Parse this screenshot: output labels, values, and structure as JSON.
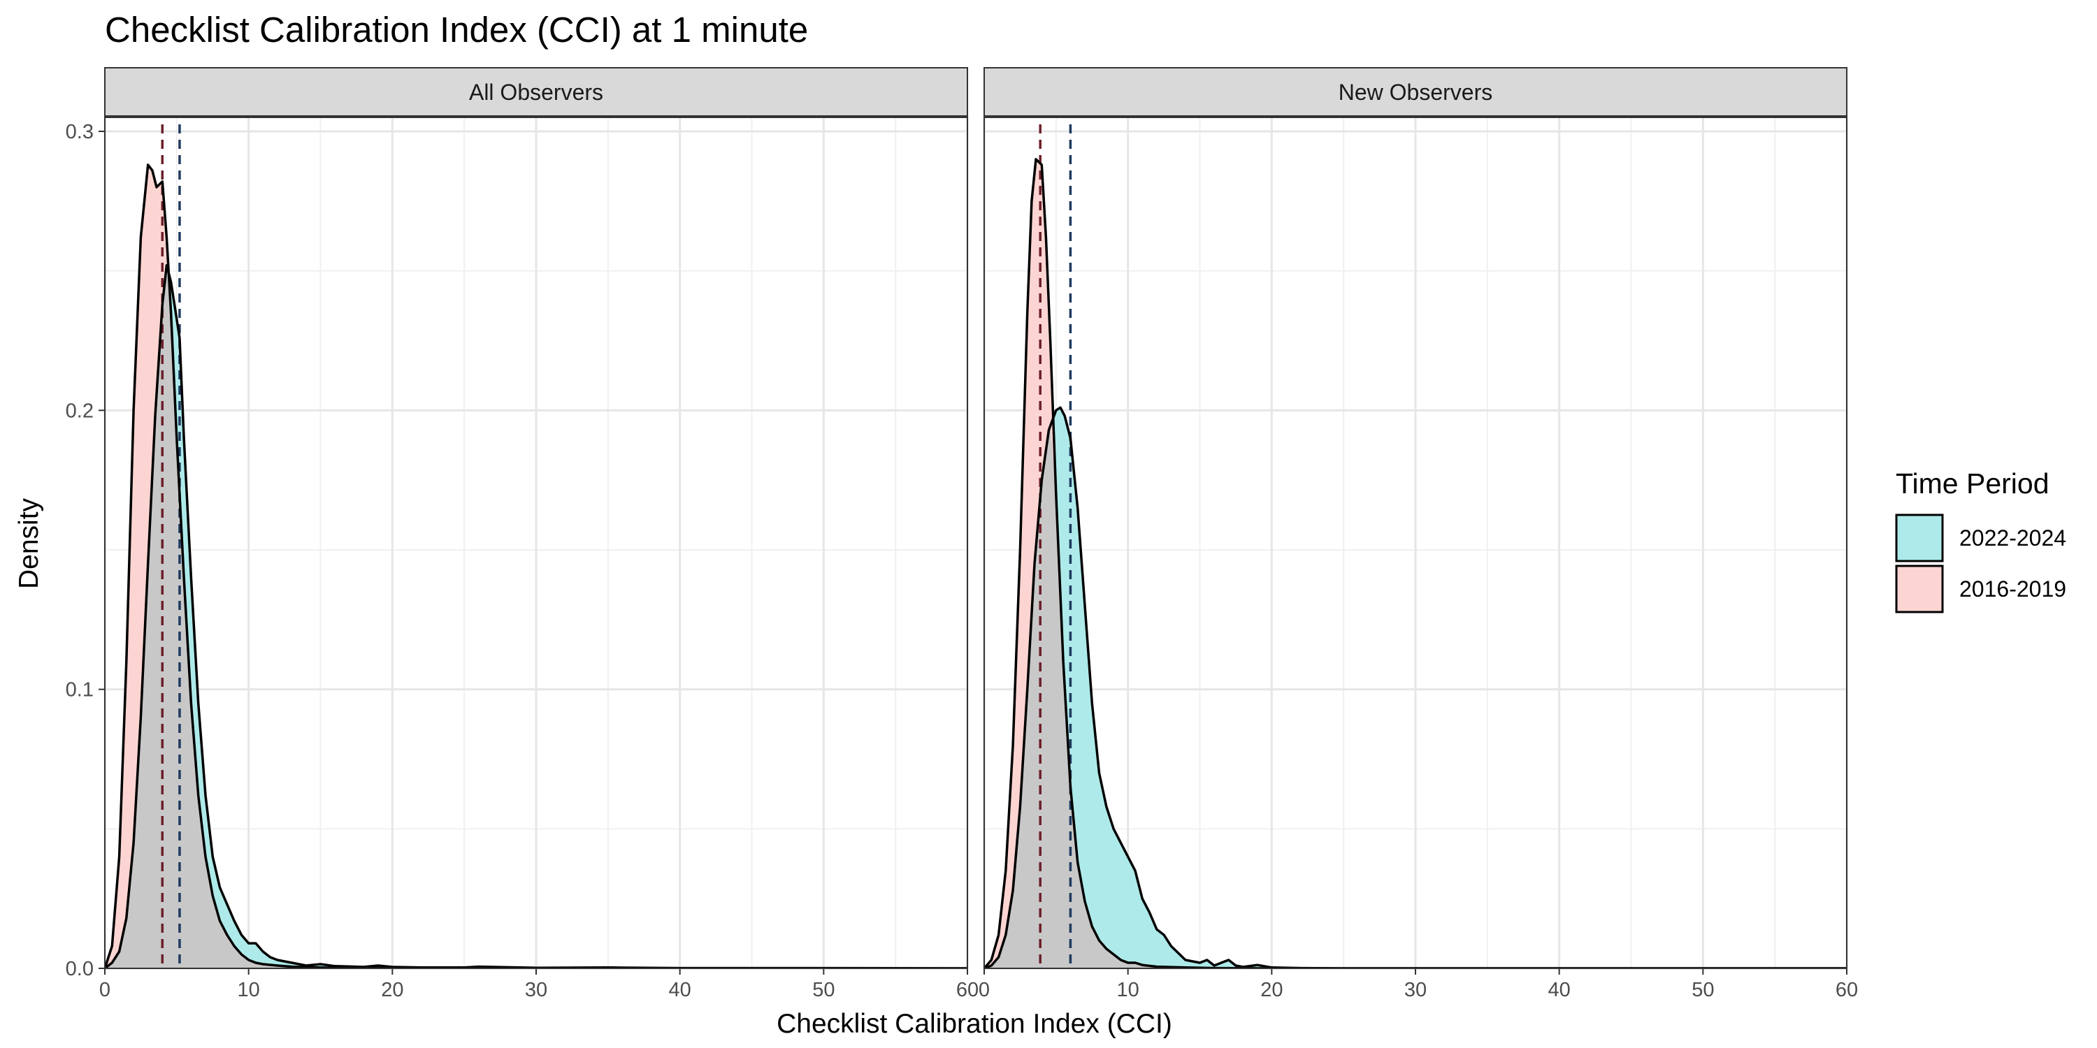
{
  "chart_data": {
    "type": "area",
    "title": "Checklist Calibration Index (CCI) at 1 minute",
    "xlabel": "Checklist Calibration Index (CCI)",
    "ylabel": "Density",
    "xlim": [
      0,
      60
    ],
    "ylim": [
      0,
      0.3
    ],
    "x_ticks": [
      "0",
      "10",
      "20",
      "30",
      "40",
      "50",
      "60"
    ],
    "y_ticks": [
      "0.0",
      "0.1",
      "0.2",
      "0.3"
    ],
    "grid": true,
    "legend": {
      "title": "Time Period",
      "placement": "right",
      "entries": [
        {
          "label": "2022-2024",
          "color": "#aeeaea"
        },
        {
          "label": "2016-2019",
          "color": "#fcd5d2"
        }
      ]
    },
    "overlap_color": "#c8c8c8",
    "panels": [
      {
        "strip": "All Observers",
        "series": [
          {
            "name": "2022-2024",
            "color": "#aeeaea",
            "mean_line": {
              "x": 5.2,
              "color": "#1f3a5f"
            },
            "x": [
              0,
              0.5,
              1,
              1.5,
              2,
              2.5,
              3,
              3.5,
              4,
              4.3,
              4.6,
              4.9,
              5.2,
              5.5,
              6,
              6.5,
              7,
              7.5,
              8,
              8.5,
              9,
              9.5,
              10,
              10.5,
              11,
              11.5,
              12,
              13,
              14,
              15,
              16,
              18,
              19,
              20,
              22,
              25,
              26,
              30,
              35,
              40,
              50,
              60
            ],
            "y": [
              0.0,
              0.002,
              0.006,
              0.018,
              0.045,
              0.09,
              0.145,
              0.198,
              0.238,
              0.252,
              0.246,
              0.236,
              0.226,
              0.19,
              0.14,
              0.095,
              0.062,
              0.04,
              0.029,
              0.023,
              0.017,
              0.012,
              0.009,
              0.009,
              0.006,
              0.004,
              0.003,
              0.002,
              0.001,
              0.0015,
              0.0008,
              0.0005,
              0.001,
              0.0005,
              0.0003,
              0.0003,
              0.0006,
              0.0002,
              0.0003,
              0.0001,
              0.0001,
              0.0
            ]
          },
          {
            "name": "2016-2019",
            "color": "#fcd5d2",
            "mean_line": {
              "x": 4.0,
              "color": "#6b1f2a"
            },
            "x": [
              0,
              0.5,
              1,
              1.5,
              2,
              2.5,
              3,
              3.3,
              3.6,
              4,
              4.3,
              4.6,
              5,
              5.5,
              6,
              6.5,
              7,
              7.5,
              8,
              8.5,
              9,
              9.5,
              10,
              10.5,
              11,
              12,
              13,
              14,
              16,
              20,
              30,
              60
            ],
            "y": [
              0.0,
              0.008,
              0.04,
              0.11,
              0.2,
              0.262,
              0.288,
              0.286,
              0.28,
              0.282,
              0.262,
              0.235,
              0.19,
              0.14,
              0.095,
              0.062,
              0.04,
              0.026,
              0.017,
              0.012,
              0.008,
              0.005,
              0.003,
              0.002,
              0.0015,
              0.001,
              0.0006,
              0.0004,
              0.0002,
              0.0001,
              0.0,
              0.0
            ]
          }
        ]
      },
      {
        "strip": "New Observers",
        "series": [
          {
            "name": "2022-2024",
            "color": "#aeeaea",
            "mean_line": {
              "x": 6.0,
              "color": "#1f3a5f"
            },
            "x": [
              0,
              0.5,
              1,
              1.5,
              2,
              2.5,
              3,
              3.5,
              4,
              4.5,
              5,
              5.3,
              5.6,
              6,
              6.5,
              7,
              7.5,
              8,
              8.5,
              9,
              9.5,
              10,
              10.5,
              11,
              11.5,
              12,
              12.5,
              13,
              14,
              15,
              15.5,
              16,
              16.5,
              17,
              17.5,
              18,
              19,
              20,
              22,
              25,
              60
            ],
            "y": [
              0.0,
              0.001,
              0.004,
              0.012,
              0.028,
              0.058,
              0.1,
              0.145,
              0.175,
              0.193,
              0.2,
              0.201,
              0.198,
              0.19,
              0.165,
              0.13,
              0.095,
              0.07,
              0.058,
              0.05,
              0.045,
              0.04,
              0.035,
              0.025,
              0.02,
              0.014,
              0.012,
              0.008,
              0.003,
              0.002,
              0.003,
              0.001,
              0.002,
              0.003,
              0.001,
              0.0005,
              0.0012,
              0.0003,
              0.0001,
              0.0,
              0.0
            ]
          },
          {
            "name": "2016-2019",
            "color": "#fcd5d2",
            "mean_line": {
              "x": 3.9,
              "color": "#6b1f2a"
            },
            "x": [
              0,
              0.5,
              1,
              1.5,
              2,
              2.5,
              3,
              3.3,
              3.6,
              4,
              4.3,
              4.6,
              5,
              5.5,
              6,
              6.5,
              7,
              7.5,
              8,
              8.5,
              9,
              9.5,
              10,
              10.5,
              11,
              12,
              14,
              16,
              20,
              60
            ],
            "y": [
              0.0,
              0.003,
              0.012,
              0.035,
              0.08,
              0.15,
              0.235,
              0.275,
              0.29,
              0.288,
              0.262,
              0.225,
              0.17,
              0.11,
              0.065,
              0.038,
              0.024,
              0.015,
              0.01,
              0.007,
              0.005,
              0.003,
              0.002,
              0.002,
              0.0012,
              0.0006,
              0.0003,
              0.0001,
              0.0,
              0.0
            ]
          }
        ]
      }
    ]
  }
}
